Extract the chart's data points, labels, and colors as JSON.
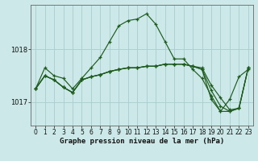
{
  "xlabel": "Graphe pression niveau de la mer (hPa)",
  "background_color": "#cce8e8",
  "line_color": "#1e5c1e",
  "grid_color": "#aacccc",
  "ylim": [
    1016.55,
    1018.85
  ],
  "xlim": [
    -0.5,
    23.5
  ],
  "yticks": [
    1017,
    1018
  ],
  "xticks": [
    0,
    1,
    2,
    3,
    4,
    5,
    6,
    7,
    8,
    9,
    10,
    11,
    12,
    13,
    14,
    15,
    16,
    17,
    18,
    19,
    20,
    21,
    22,
    23
  ],
  "series": [
    [
      1017.25,
      1017.65,
      1017.5,
      1017.45,
      1017.25,
      1017.45,
      1017.65,
      1017.85,
      1018.15,
      1018.45,
      1018.55,
      1018.58,
      1018.68,
      1018.48,
      1018.15,
      1017.82,
      1017.82,
      1017.62,
      1017.45,
      1017.12,
      1016.82,
      1017.05,
      1017.48,
      1017.62
    ],
    [
      1017.25,
      1017.5,
      1017.42,
      1017.28,
      1017.18,
      1017.42,
      1017.48,
      1017.52,
      1017.58,
      1017.62,
      1017.65,
      1017.65,
      1017.68,
      1017.68,
      1017.72,
      1017.72,
      1017.72,
      1017.68,
      1017.65,
      1017.32,
      1017.08,
      1016.85,
      1016.88,
      1017.65
    ],
    [
      1017.25,
      1017.5,
      1017.42,
      1017.28,
      1017.18,
      1017.42,
      1017.48,
      1017.52,
      1017.58,
      1017.62,
      1017.65,
      1017.65,
      1017.68,
      1017.68,
      1017.72,
      1017.72,
      1017.72,
      1017.68,
      1017.62,
      1017.22,
      1016.92,
      1016.82,
      1016.88,
      1017.65
    ],
    [
      1017.25,
      1017.5,
      1017.42,
      1017.28,
      1017.18,
      1017.42,
      1017.48,
      1017.52,
      1017.58,
      1017.62,
      1017.65,
      1017.65,
      1017.68,
      1017.68,
      1017.72,
      1017.72,
      1017.72,
      1017.68,
      1017.62,
      1017.05,
      1016.82,
      1016.82,
      1016.88,
      1017.65
    ]
  ],
  "figsize": [
    3.2,
    2.0
  ],
  "dpi": 100,
  "tick_fontsize": 5.5,
  "xlabel_fontsize": 6.5,
  "marker_size": 3,
  "linewidth": 0.85
}
